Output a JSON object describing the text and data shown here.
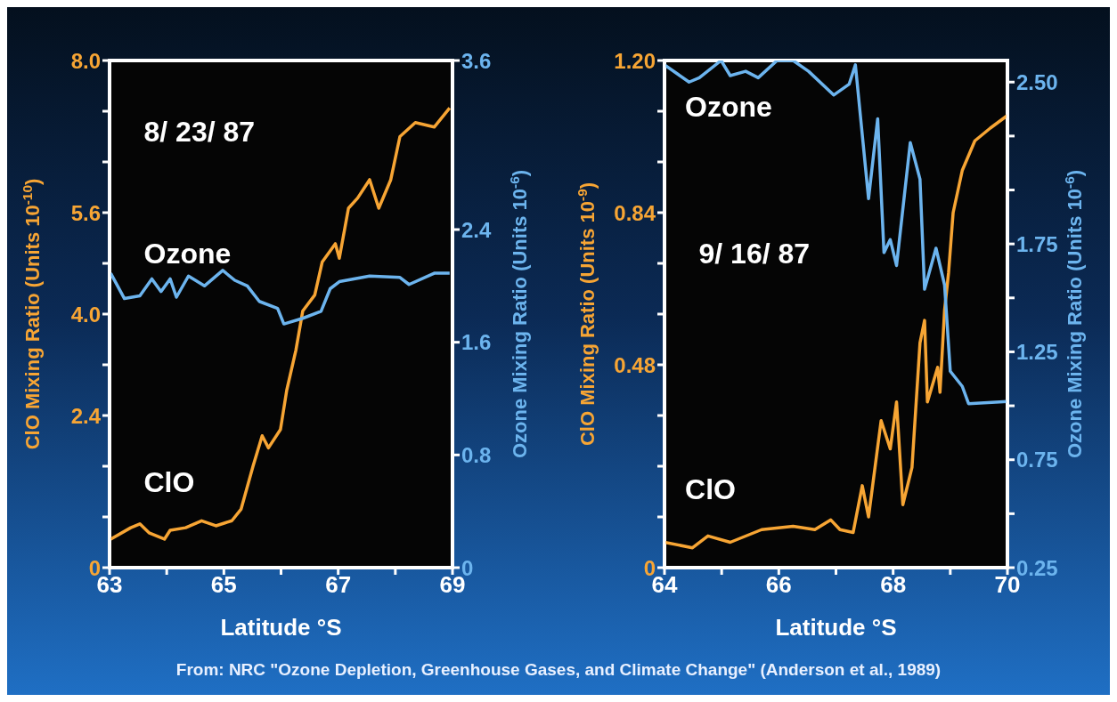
{
  "chart_data": [
    {
      "type": "line",
      "xlabel": "Latitude °S",
      "ylabel": "ClO Mixing Ratio (Units 10$^{-10}$)",
      "y2label": "Ozone Mixing Ratio (Units 10$^{-6}$)",
      "annotations": [
        "8/ 23/ 87"
      ],
      "xlim": [
        63,
        69
      ],
      "xticks": [
        63,
        {
          "value": 64,
          "label": null
        },
        65,
        {
          "value": 66,
          "label": null
        },
        67,
        {
          "value": 68,
          "label": null
        },
        69
      ],
      "ylim": [
        0,
        8
      ],
      "yticks": [
        0,
        {
          "value": 0.8,
          "label": null
        },
        {
          "value": 1.6,
          "label": null
        },
        2.4,
        {
          "value": 3.2,
          "label": null
        },
        {
          "value": 4,
          "label": "4.0"
        },
        {
          "value": 4.8,
          "label": null
        },
        5.6,
        {
          "value": 6.4,
          "label": null
        },
        {
          "value": 7.2,
          "label": null
        },
        {
          "value": 8,
          "label": "8.0"
        }
      ],
      "y2lim": [
        0,
        3.6
      ],
      "y2ticks": [
        0,
        0.8,
        1.6,
        2.4,
        3.6
      ],
      "series": [
        {
          "name": "ClO",
          "color": "#f7a534",
          "axis": "y",
          "x": [
            63.02,
            63.37,
            63.53,
            63.69,
            63.96,
            64.06,
            64.33,
            64.61,
            64.86,
            65.14,
            65.3,
            65.51,
            65.67,
            65.78,
            65.99,
            66.1,
            66.26,
            66.38,
            66.59,
            66.72,
            66.95,
            67.02,
            67.18,
            67.34,
            67.55,
            67.71,
            67.92,
            68.08,
            68.35,
            68.68,
            68.95
          ],
          "values": [
            0.45,
            0.63,
            0.69,
            0.55,
            0.45,
            0.59,
            0.63,
            0.74,
            0.66,
            0.74,
            0.92,
            1.6,
            2.08,
            1.89,
            2.18,
            2.8,
            3.43,
            4.05,
            4.3,
            4.82,
            5.11,
            4.88,
            5.67,
            5.83,
            6.12,
            5.67,
            6.12,
            6.8,
            7.02,
            6.95,
            7.25
          ]
        },
        {
          "name": "Ozone",
          "color": "#6cb4ee",
          "axis": "y2",
          "x": [
            63.02,
            63.26,
            63.53,
            63.74,
            63.9,
            64.06,
            64.17,
            64.38,
            64.66,
            64.98,
            65.19,
            65.41,
            65.62,
            65.94,
            66.05,
            66.38,
            66.7,
            66.86,
            67.02,
            67.55,
            68.08,
            68.24,
            68.68,
            68.95
          ],
          "values": [
            2.09,
            1.91,
            1.93,
            2.05,
            1.96,
            2.05,
            1.92,
            2.07,
            2,
            2.11,
            2.04,
            2,
            1.89,
            1.84,
            1.73,
            1.77,
            1.82,
            1.98,
            2.03,
            2.07,
            2.06,
            2.01,
            2.09,
            2.09
          ]
        }
      ]
    },
    {
      "type": "line",
      "xlabel": "Latitude °S",
      "ylabel": "ClO Mixing Ratio (Units 10$^{-9}$)",
      "y2label": "Ozone Mixing Ratio (Units 10$^{-6}$)",
      "annotations": [
        "9/ 16/ 87",
        "From: NRC \"Ozone Depletion, Greenhouse Gases, and Climate Change\" (Anderson et al., 1989)"
      ],
      "xlim": [
        64,
        70
      ],
      "xticks": [
        64,
        {
          "value": 65,
          "label": null
        },
        66,
        {
          "value": 67,
          "label": null
        },
        68,
        {
          "value": 69,
          "label": null
        },
        70
      ],
      "ylim": [
        0,
        1.2
      ],
      "yticks": [
        0,
        {
          "value": 0.12,
          "label": null
        },
        {
          "value": 0.24,
          "label": null
        },
        {
          "value": 0.36,
          "label": null
        },
        0.48,
        {
          "value": 0.6,
          "label": null
        },
        {
          "value": 0.72,
          "label": null
        },
        0.84,
        {
          "value": 0.96,
          "label": null
        },
        {
          "value": 1.08,
          "label": null
        },
        {
          "value": 1.2,
          "label": "1.20"
        }
      ],
      "y2lim": [
        0.25,
        2.6
      ],
      "y2ticks": [
        0.25,
        {
          "value": 0.5,
          "label": null
        },
        0.75,
        {
          "value": 1,
          "label": null
        },
        1.25,
        {
          "value": 1.5,
          "label": null
        },
        1.75,
        {
          "value": 2,
          "label": null
        },
        {
          "value": 2.25,
          "label": null
        },
        {
          "value": 2.5,
          "label": "2.50"
        }
      ],
      "series": [
        {
          "name": "ClO",
          "color": "#f7a534",
          "axis": "y",
          "x": [
            64,
            64.49,
            64.76,
            65.15,
            65.7,
            66.25,
            66.63,
            66.91,
            67.07,
            67.3,
            67.46,
            67.57,
            67.79,
            67.95,
            68.06,
            68.17,
            68.33,
            68.47,
            68.55,
            68.6,
            68.78,
            68.82,
            68.9,
            68.97,
            69.05,
            69.21,
            69.43,
            69.7,
            70
          ],
          "values": [
            0.06,
            0.047,
            0.075,
            0.06,
            0.09,
            0.098,
            0.09,
            0.113,
            0.09,
            0.083,
            0.194,
            0.12,
            0.348,
            0.281,
            0.392,
            0.149,
            0.237,
            0.532,
            0.585,
            0.392,
            0.474,
            0.415,
            0.609,
            0.698,
            0.84,
            0.94,
            1.01,
            1.04,
            1.07
          ]
        },
        {
          "name": "Ozone",
          "color": "#6cb4ee",
          "axis": "y2",
          "x": [
            64,
            64.43,
            64.61,
            64.99,
            65.15,
            65.42,
            65.64,
            65.97,
            66.25,
            66.52,
            66.96,
            67.23,
            67.34,
            67.57,
            67.73,
            67.84,
            67.95,
            68.06,
            68.3,
            68.47,
            68.55,
            68.75,
            68.9,
            69,
            69.21,
            69.32,
            70
          ],
          "values": [
            2.58,
            2.5,
            2.52,
            2.6,
            2.53,
            2.55,
            2.52,
            2.6,
            2.6,
            2.55,
            2.44,
            2.49,
            2.58,
            1.96,
            2.33,
            1.71,
            1.77,
            1.65,
            2.22,
            2.05,
            1.54,
            1.73,
            1.56,
            1.16,
            1.09,
            1.01,
            1.02
          ]
        }
      ]
    }
  ]
}
